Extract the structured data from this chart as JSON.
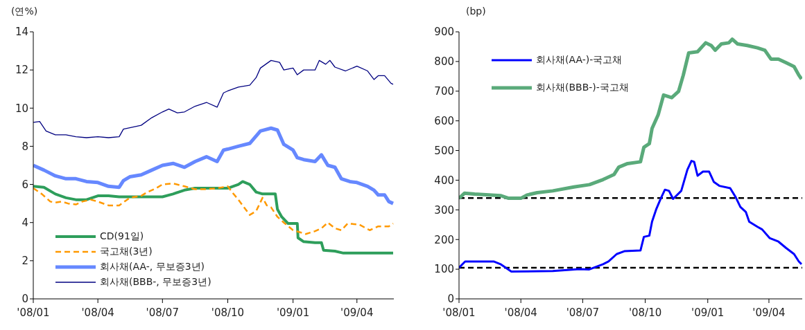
{
  "chart_data": [
    {
      "type": "line",
      "ylabel": "(연%)",
      "xlim": [
        "2008-01-01",
        "2009-05-23"
      ],
      "ylim": [
        0,
        14
      ],
      "yticks": [
        0,
        2,
        4,
        6,
        8,
        10,
        12,
        14
      ],
      "xticks": [
        {
          "value": "2008-01-01",
          "label": "'08/01"
        },
        {
          "value": "2008-04-01",
          "label": "'08/04"
        },
        {
          "value": "2008-07-01",
          "label": "'08/07"
        },
        {
          "value": "2008-10-01",
          "label": "'08/10"
        },
        {
          "value": "2009-01-01",
          "label": "'09/01"
        },
        {
          "value": "2009-04-01",
          "label": "'09/04"
        }
      ],
      "grid": false,
      "legend": "bottom left",
      "marker": "none",
      "series": [
        {
          "name": "CD(91일)",
          "color": "#2e9e5b",
          "line_style": "solid",
          "x": [
            "2008-01-01",
            "2008-01-16",
            "2008-02-01",
            "2008-02-16",
            "2008-03-01",
            "2008-03-16",
            "2008-04-01",
            "2008-04-16",
            "2008-05-01",
            "2008-06-01",
            "2008-07-01",
            "2008-07-16",
            "2008-08-01",
            "2008-08-16",
            "2008-09-01",
            "2008-10-01",
            "2008-10-16",
            "2008-10-22",
            "2008-11-01",
            "2008-11-10",
            "2008-11-19",
            "2008-12-07",
            "2008-12-10",
            "2008-12-16",
            "2008-12-25",
            "2009-01-07",
            "2009-01-08",
            "2009-01-16",
            "2009-02-01",
            "2009-02-10",
            "2009-02-13",
            "2009-03-01",
            "2009-03-13",
            "2009-04-01",
            "2009-05-22"
          ],
          "values": [
            5.9,
            5.85,
            5.5,
            5.3,
            5.2,
            5.2,
            5.4,
            5.4,
            5.35,
            5.35,
            5.35,
            5.5,
            5.7,
            5.8,
            5.8,
            5.8,
            6.0,
            6.15,
            6.0,
            5.6,
            5.5,
            5.5,
            4.7,
            4.3,
            3.95,
            3.95,
            3.2,
            3.0,
            2.95,
            2.95,
            2.55,
            2.5,
            2.4,
            2.4,
            2.4
          ]
        },
        {
          "name": "국고채(3년)",
          "color": "#ff9900",
          "line_style": "dashed",
          "x": [
            "2008-01-01",
            "2008-01-13",
            "2008-01-25",
            "2008-02-01",
            "2008-02-10",
            "2008-02-19",
            "2008-03-01",
            "2008-03-10",
            "2008-03-22",
            "2008-04-01",
            "2008-04-16",
            "2008-05-01",
            "2008-05-16",
            "2008-06-01",
            "2008-06-10",
            "2008-06-22",
            "2008-07-01",
            "2008-07-16",
            "2008-08-01",
            "2008-08-16",
            "2008-09-01",
            "2008-09-16",
            "2008-10-01",
            "2008-10-07",
            "2008-10-16",
            "2008-10-22",
            "2008-11-01",
            "2008-11-10",
            "2008-11-19",
            "2008-11-25",
            "2008-12-01",
            "2008-12-10",
            "2008-12-19",
            "2009-01-01",
            "2009-01-10",
            "2009-01-19",
            "2009-02-01",
            "2009-02-10",
            "2009-02-19",
            "2009-03-01",
            "2009-03-10",
            "2009-03-19",
            "2009-04-04",
            "2009-04-19",
            "2009-05-01",
            "2009-05-16",
            "2009-05-22"
          ],
          "values": [
            5.8,
            5.5,
            5.1,
            5.05,
            5.1,
            5.0,
            4.95,
            5.1,
            5.2,
            5.1,
            4.9,
            4.9,
            5.3,
            5.4,
            5.6,
            5.8,
            6.0,
            6.05,
            5.9,
            5.75,
            5.75,
            5.8,
            5.9,
            5.6,
            5.2,
            4.9,
            4.4,
            4.6,
            5.3,
            4.9,
            4.8,
            4.3,
            4.0,
            3.6,
            3.5,
            3.4,
            3.55,
            3.7,
            4.0,
            3.7,
            3.6,
            3.95,
            3.9,
            3.6,
            3.8,
            3.8,
            3.95
          ]
        },
        {
          "name": "회사채(AA-, 무보증3년)",
          "color": "#6688ff",
          "line_style": "solid",
          "x": [
            "2008-01-01",
            "2008-01-16",
            "2008-02-01",
            "2008-02-16",
            "2008-03-01",
            "2008-03-16",
            "2008-04-01",
            "2008-04-16",
            "2008-05-01",
            "2008-05-07",
            "2008-05-16",
            "2008-06-01",
            "2008-06-16",
            "2008-07-01",
            "2008-07-16",
            "2008-08-01",
            "2008-08-16",
            "2008-09-01",
            "2008-09-16",
            "2008-09-25",
            "2008-10-01",
            "2008-10-16",
            "2008-11-01",
            "2008-11-16",
            "2008-12-01",
            "2008-12-10",
            "2008-12-19",
            "2009-01-01",
            "2009-01-07",
            "2009-01-16",
            "2009-02-01",
            "2009-02-10",
            "2009-02-19",
            "2009-03-01",
            "2009-03-10",
            "2009-03-22",
            "2009-04-01",
            "2009-04-16",
            "2009-04-25",
            "2009-05-01",
            "2009-05-10",
            "2009-05-16",
            "2009-05-22"
          ],
          "values": [
            7.0,
            6.75,
            6.45,
            6.3,
            6.3,
            6.15,
            6.1,
            5.9,
            5.85,
            6.2,
            6.4,
            6.5,
            6.75,
            7.0,
            7.1,
            6.9,
            7.2,
            7.45,
            7.2,
            7.8,
            7.85,
            8.0,
            8.15,
            8.8,
            8.95,
            8.85,
            8.1,
            7.8,
            7.4,
            7.3,
            7.2,
            7.55,
            7.0,
            6.9,
            6.3,
            6.15,
            6.1,
            5.9,
            5.7,
            5.45,
            5.45,
            5.1,
            5.0
          ]
        },
        {
          "name": "회사채(BBB-, 무보증3년)",
          "color": "#000080",
          "line_style": "solid",
          "x": [
            "2008-01-01",
            "2008-01-10",
            "2008-01-19",
            "2008-02-01",
            "2008-02-16",
            "2008-03-01",
            "2008-03-16",
            "2008-04-01",
            "2008-04-16",
            "2008-05-01",
            "2008-05-07",
            "2008-06-01",
            "2008-06-16",
            "2008-07-01",
            "2008-07-10",
            "2008-07-22",
            "2008-08-01",
            "2008-08-16",
            "2008-09-01",
            "2008-09-16",
            "2008-09-25",
            "2008-10-01",
            "2008-10-16",
            "2008-11-01",
            "2008-11-10",
            "2008-11-16",
            "2008-12-01",
            "2008-12-13",
            "2008-12-19",
            "2009-01-01",
            "2009-01-07",
            "2009-01-16",
            "2009-02-01",
            "2009-02-07",
            "2009-02-16",
            "2009-02-22",
            "2009-03-01",
            "2009-03-16",
            "2009-04-01",
            "2009-04-16",
            "2009-04-25",
            "2009-05-01",
            "2009-05-10",
            "2009-05-19",
            "2009-05-22"
          ],
          "values": [
            9.25,
            9.3,
            8.8,
            8.6,
            8.6,
            8.5,
            8.45,
            8.5,
            8.45,
            8.5,
            8.9,
            9.1,
            9.5,
            9.8,
            9.95,
            9.75,
            9.8,
            10.1,
            10.3,
            10.05,
            10.8,
            10.9,
            11.1,
            11.2,
            11.6,
            12.1,
            12.5,
            12.4,
            12.0,
            12.1,
            11.75,
            12.0,
            12.0,
            12.5,
            12.3,
            12.5,
            12.15,
            11.95,
            12.2,
            11.95,
            11.5,
            11.7,
            11.7,
            11.3,
            11.25
          ]
        }
      ]
    },
    {
      "type": "line",
      "ylabel": "(bp)",
      "xlim": [
        "2008-01-01",
        "2009-05-20"
      ],
      "ylim": [
        0,
        900
      ],
      "yticks": [
        0,
        100,
        200,
        300,
        400,
        500,
        600,
        700,
        800,
        900
      ],
      "xticks": [
        {
          "value": "2008-01-01",
          "label": "'08/01"
        },
        {
          "value": "2008-04-01",
          "label": "'08/04"
        },
        {
          "value": "2008-07-01",
          "label": "'08/07"
        },
        {
          "value": "2008-10-01",
          "label": "'08/10"
        },
        {
          "value": "2009-01-01",
          "label": "'09/01"
        },
        {
          "value": "2009-04-01",
          "label": "'09/04"
        }
      ],
      "grid": false,
      "legend": "top left",
      "marker": "none",
      "ref_lines": [
        {
          "axis": "y",
          "value": 340,
          "color": "#000000",
          "line_style": "dashed"
        },
        {
          "axis": "y",
          "value": 105,
          "color": "#000000",
          "line_style": "dashed"
        }
      ],
      "series": [
        {
          "name": "회사채(AA-)-국고채",
          "color": "#0000ff",
          "line_style": "solid",
          "x": [
            "2008-01-01",
            "2008-01-10",
            "2008-02-21",
            "2008-03-02",
            "2008-03-18",
            "2008-05-18",
            "2008-06-26",
            "2008-07-10",
            "2008-07-31",
            "2008-08-08",
            "2008-08-20",
            "2008-09-01",
            "2008-09-24",
            "2008-09-29",
            "2008-10-07",
            "2008-10-11",
            "2008-10-17",
            "2008-10-24",
            "2008-10-30",
            "2008-11-05",
            "2008-11-11",
            "2008-11-23",
            "2008-12-02",
            "2008-12-08",
            "2008-12-12",
            "2008-12-17",
            "2008-12-25",
            "2009-01-03",
            "2009-01-10",
            "2009-01-18",
            "2009-02-03",
            "2009-02-11",
            "2009-02-18",
            "2009-02-26",
            "2009-03-03",
            "2009-03-15",
            "2009-03-22",
            "2009-04-02",
            "2009-04-15",
            "2009-04-26",
            "2009-05-08",
            "2009-05-15",
            "2009-05-19"
          ],
          "values": [
            105,
            126,
            126,
            117,
            92,
            94,
            100,
            99,
            117,
            126,
            151,
            161,
            163,
            209,
            213,
            260,
            301,
            339,
            368,
            364,
            337,
            364,
            435,
            465,
            462,
            415,
            429,
            429,
            394,
            381,
            373,
            343,
            310,
            293,
            260,
            243,
            234,
            205,
            193,
            172,
            151,
            126,
            117
          ]
        },
        {
          "name": "회사채(BBB-)-국고채",
          "color": "#5aaa7a",
          "line_style": "solid",
          "x": [
            "2008-01-01",
            "2008-01-09",
            "2008-01-24",
            "2008-03-02",
            "2008-03-14",
            "2008-04-01",
            "2008-04-10",
            "2008-04-25",
            "2008-05-18",
            "2008-06-18",
            "2008-07-11",
            "2008-07-31",
            "2008-08-16",
            "2008-08-23",
            "2008-09-05",
            "2008-09-24",
            "2008-09-29",
            "2008-10-07",
            "2008-10-11",
            "2008-10-20",
            "2008-10-28",
            "2008-11-09",
            "2008-11-19",
            "2008-11-26",
            "2008-12-04",
            "2008-12-17",
            "2008-12-29",
            "2009-01-06",
            "2009-01-12",
            "2009-01-21",
            "2009-02-01",
            "2009-02-06",
            "2009-02-14",
            "2009-02-28",
            "2009-03-15",
            "2009-03-26",
            "2009-04-04",
            "2009-04-15",
            "2009-04-26",
            "2009-05-08",
            "2009-05-15",
            "2009-05-19"
          ],
          "values": [
            339,
            356,
            353,
            348,
            339,
            339,
            350,
            358,
            364,
            377,
            385,
            402,
            419,
            444,
            456,
            462,
            511,
            523,
            574,
            620,
            687,
            678,
            699,
            754,
            829,
            833,
            863,
            854,
            838,
            859,
            863,
            875,
            859,
            854,
            846,
            838,
            808,
            808,
            796,
            783,
            754,
            741
          ]
        }
      ]
    }
  ]
}
